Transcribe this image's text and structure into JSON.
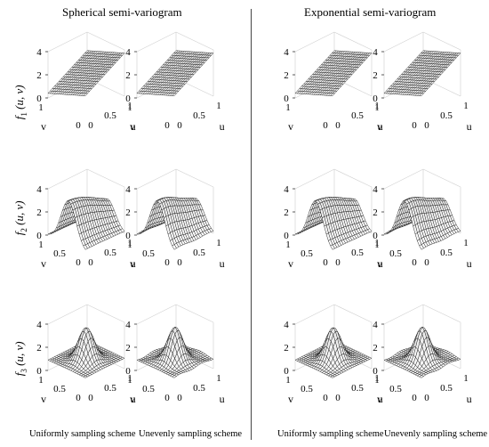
{
  "column_titles": [
    "Spherical semi-variogram",
    "Exponential semi-variogram"
  ],
  "row_labels": [
    {
      "fn": "f",
      "sub": "1",
      "args": "(u, v)"
    },
    {
      "fn": "f",
      "sub": "2",
      "args": "(u, v)"
    },
    {
      "fn": "f",
      "sub": "3",
      "args": "(u, v)"
    }
  ],
  "scheme_labels": [
    "Uniformly sampling scheme",
    "Unevenly sampling scheme"
  ],
  "axis_labels": {
    "u": "u",
    "v": "v"
  },
  "z_ticks": [
    "0",
    "2",
    "4"
  ],
  "u_ticks": [
    "0",
    "0.5",
    "1"
  ],
  "v_ticks": [
    "0",
    "0.5",
    "1"
  ],
  "chart_data": [
    {
      "type": "surface",
      "variogram": "Spherical",
      "scheme": "Uniformly sampling scheme",
      "function": "f1(u,v)",
      "shape": "plane",
      "zlim": [
        0,
        4
      ],
      "xlim": [
        0,
        1
      ],
      "ylim": [
        0,
        1
      ]
    },
    {
      "type": "surface",
      "variogram": "Spherical",
      "scheme": "Unevenly sampling scheme",
      "function": "f1(u,v)",
      "shape": "plane",
      "zlim": [
        0,
        4
      ],
      "xlim": [
        0,
        1
      ],
      "ylim": [
        0,
        1
      ]
    },
    {
      "type": "surface",
      "variogram": "Exponential",
      "scheme": "Uniformly sampling scheme",
      "function": "f1(u,v)",
      "shape": "plane",
      "zlim": [
        0,
        4
      ],
      "xlim": [
        0,
        1
      ],
      "ylim": [
        0,
        1
      ]
    },
    {
      "type": "surface",
      "variogram": "Exponential",
      "scheme": "Unevenly sampling scheme",
      "function": "f1(u,v)",
      "shape": "plane",
      "zlim": [
        0,
        4
      ],
      "xlim": [
        0,
        1
      ],
      "ylim": [
        0,
        1
      ]
    },
    {
      "type": "surface",
      "variogram": "Spherical",
      "scheme": "Uniformly sampling scheme",
      "function": "f2(u,v)",
      "shape": "ridge",
      "zlim": [
        0,
        4
      ],
      "xlim": [
        0,
        1
      ],
      "ylim": [
        0,
        1
      ]
    },
    {
      "type": "surface",
      "variogram": "Spherical",
      "scheme": "Unevenly sampling scheme",
      "function": "f2(u,v)",
      "shape": "ridge",
      "zlim": [
        0,
        4
      ],
      "xlim": [
        0,
        1
      ],
      "ylim": [
        0,
        1
      ]
    },
    {
      "type": "surface",
      "variogram": "Exponential",
      "scheme": "Uniformly sampling scheme",
      "function": "f2(u,v)",
      "shape": "ridge",
      "zlim": [
        0,
        4
      ],
      "xlim": [
        0,
        1
      ],
      "ylim": [
        0,
        1
      ]
    },
    {
      "type": "surface",
      "variogram": "Exponential",
      "scheme": "Unevenly sampling scheme",
      "function": "f2(u,v)",
      "shape": "ridge",
      "zlim": [
        0,
        4
      ],
      "xlim": [
        0,
        1
      ],
      "ylim": [
        0,
        1
      ]
    },
    {
      "type": "surface",
      "variogram": "Spherical",
      "scheme": "Uniformly sampling scheme",
      "function": "f3(u,v)",
      "shape": "peak",
      "zlim": [
        0,
        4
      ],
      "xlim": [
        0,
        1
      ],
      "ylim": [
        0,
        1
      ]
    },
    {
      "type": "surface",
      "variogram": "Spherical",
      "scheme": "Unevenly sampling scheme",
      "function": "f3(u,v)",
      "shape": "peak",
      "zlim": [
        0,
        4
      ],
      "xlim": [
        0,
        1
      ],
      "ylim": [
        0,
        1
      ]
    },
    {
      "type": "surface",
      "variogram": "Exponential",
      "scheme": "Uniformly sampling scheme",
      "function": "f3(u,v)",
      "shape": "peak",
      "zlim": [
        0,
        4
      ],
      "xlim": [
        0,
        1
      ],
      "ylim": [
        0,
        1
      ]
    },
    {
      "type": "surface",
      "variogram": "Exponential",
      "scheme": "Unevenly sampling scheme",
      "function": "f3(u,v)",
      "shape": "peak",
      "zlim": [
        0,
        4
      ],
      "xlim": [
        0,
        1
      ],
      "ylim": [
        0,
        1
      ]
    }
  ]
}
